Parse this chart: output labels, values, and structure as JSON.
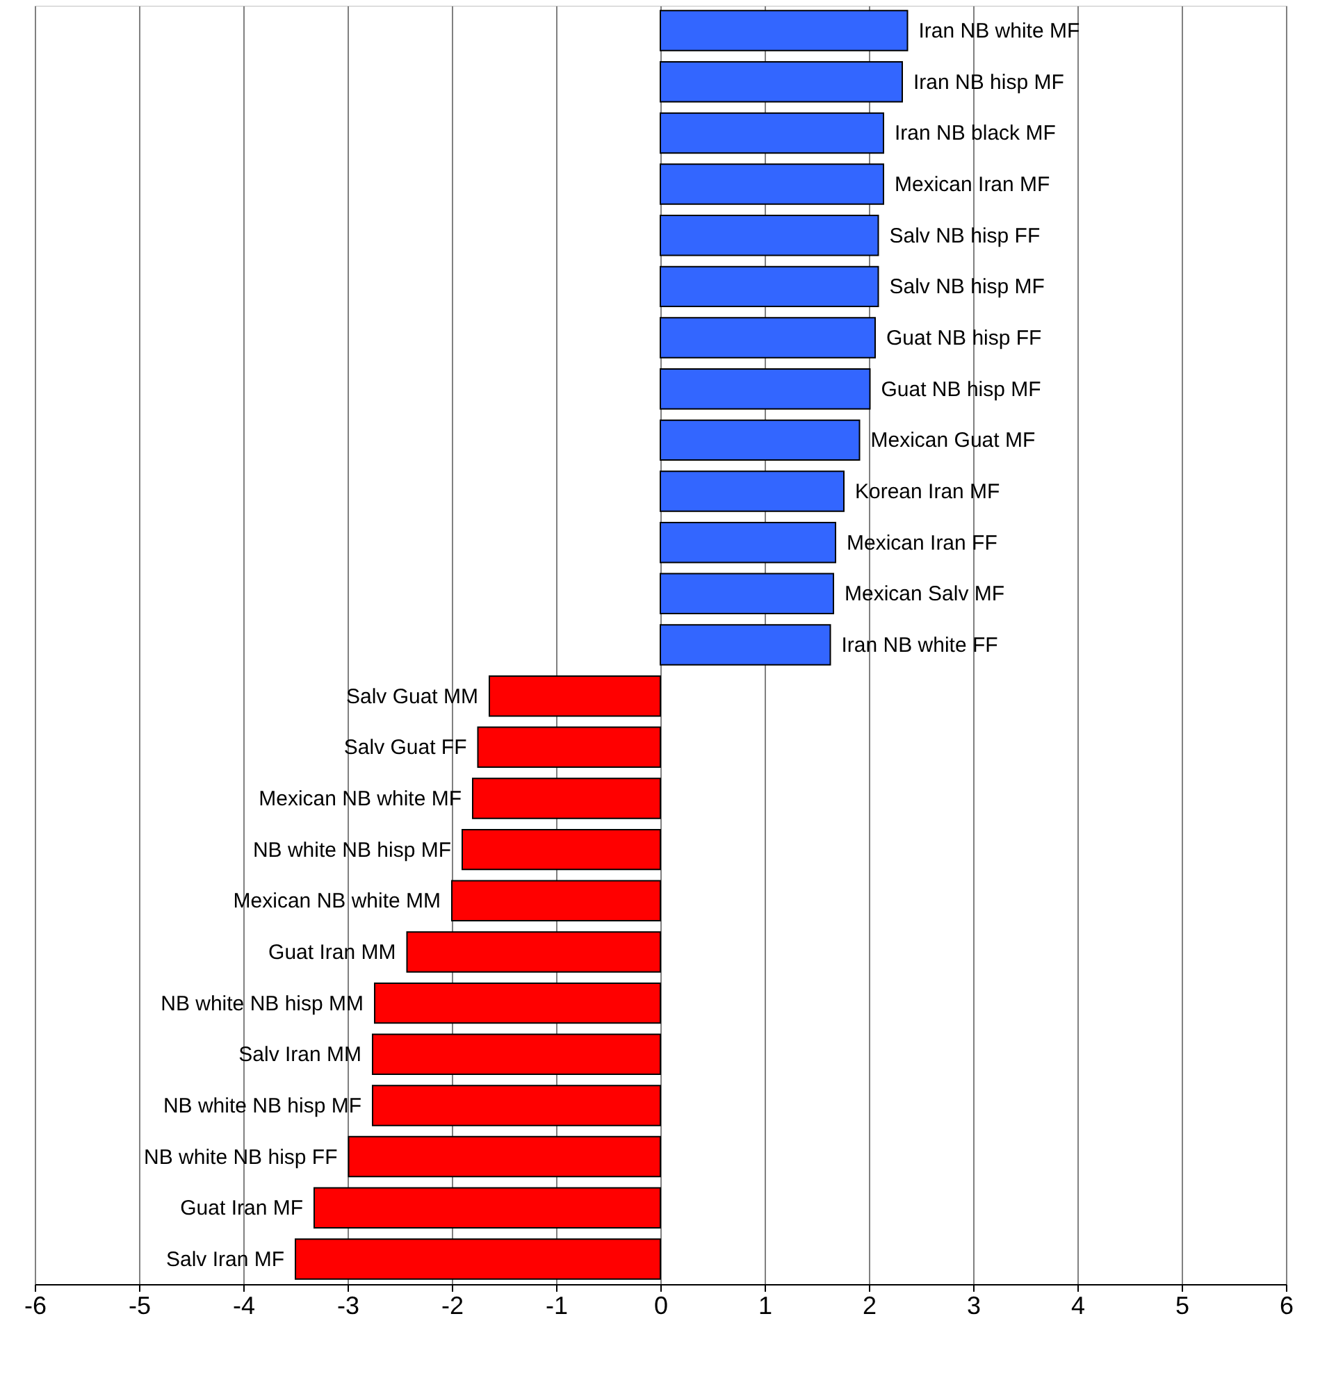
{
  "chart_data": {
    "type": "bar",
    "orientation": "horizontal",
    "categories": [
      "Iran NB white MF",
      "Iran NB hisp MF",
      "Iran NB black MF",
      "Mexican Iran MF",
      "Salv NB hisp FF",
      "Salv NB hisp MF",
      "Guat NB hisp FF",
      "Guat NB hisp MF",
      "Mexican Guat MF",
      "Korean Iran MF",
      "Mexican Iran FF",
      "Mexican Salv MF",
      "Iran NB white FF",
      "Salv Guat MM",
      "Salv Guat FF",
      "Mexican NB white MF",
      "NB white NB hisp MF",
      "Mexican NB white MM",
      "Guat Iran MM",
      "NB white NB hisp MM",
      "Salv Iran MM",
      "NB white NB hisp MF",
      "NB white NB hisp FF",
      "Guat Iran MF",
      "Salv Iran MF"
    ],
    "values": [
      2.37,
      2.32,
      2.14,
      2.14,
      2.09,
      2.09,
      2.06,
      2.01,
      1.91,
      1.76,
      1.68,
      1.66,
      1.63,
      -1.64,
      -1.75,
      -1.8,
      -1.9,
      -2.0,
      -2.43,
      -2.74,
      -2.76,
      -2.76,
      -2.99,
      -3.32,
      -3.5
    ],
    "colors": [
      "#3366ff",
      "#3366ff",
      "#3366ff",
      "#3366ff",
      "#3366ff",
      "#3366ff",
      "#3366ff",
      "#3366ff",
      "#3366ff",
      "#3366ff",
      "#3366ff",
      "#3366ff",
      "#3366ff",
      "#ff0000",
      "#ff0000",
      "#ff0000",
      "#ff0000",
      "#ff0000",
      "#ff0000",
      "#ff0000",
      "#ff0000",
      "#ff0000",
      "#ff0000",
      "#ff0000",
      "#ff0000"
    ],
    "xlim": [
      -6,
      6
    ],
    "xticks": [
      -6,
      -5,
      -4,
      -3,
      -2,
      -1,
      0,
      1,
      2,
      3,
      4,
      5,
      6
    ],
    "grid": "x"
  }
}
